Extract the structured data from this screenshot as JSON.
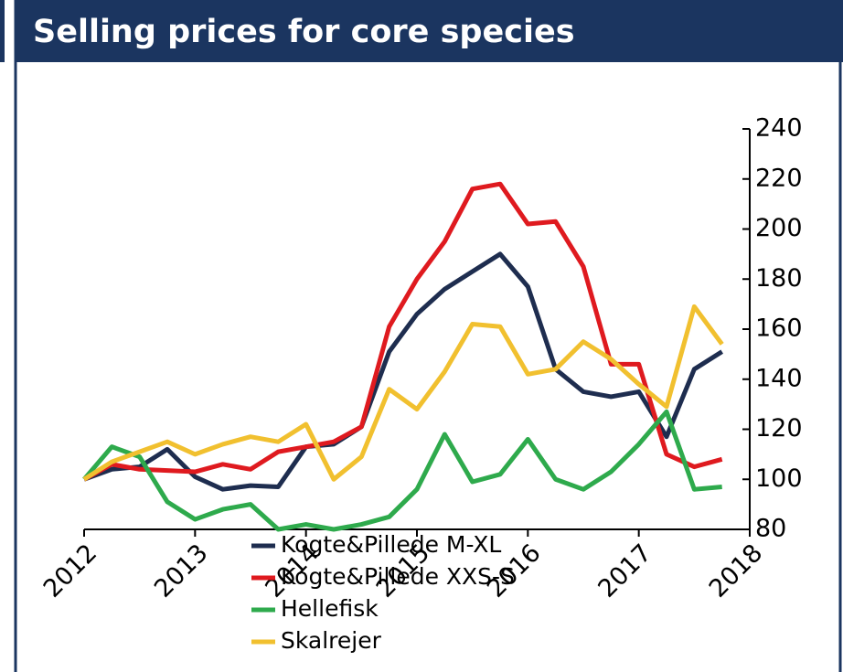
{
  "chart_data": {
    "type": "line",
    "title": "Selling prices for core species",
    "x": [
      2012,
      2012.25,
      2012.5,
      2012.75,
      2013,
      2013.25,
      2013.5,
      2013.75,
      2014,
      2014.25,
      2014.5,
      2014.75,
      2015,
      2015.25,
      2015.5,
      2015.75,
      2016,
      2016.25,
      2016.5,
      2016.75,
      2017,
      2017.25,
      2017.5,
      2017.75
    ],
    "series": [
      {
        "name": "Kogte&Pillede M-XL",
        "color": "#1e2d4f",
        "values": [
          100,
          104,
          105,
          112,
          101,
          96,
          97.5,
          97,
          113,
          114,
          121,
          151,
          166,
          176,
          183,
          190,
          177,
          144,
          135,
          133,
          135,
          117,
          144,
          151
        ]
      },
      {
        "name": "Kogte&Pillede XXS-S",
        "color": "#df1a1f",
        "values": [
          100,
          106,
          104,
          103.5,
          103,
          106,
          104,
          111,
          113,
          115,
          121,
          161,
          180,
          195,
          216,
          218,
          202,
          203,
          185,
          146,
          146,
          110,
          105,
          108
        ]
      },
      {
        "name": "Hellefisk",
        "color": "#2eaa4c",
        "values": [
          100,
          113,
          109,
          91,
          84,
          88,
          90,
          80,
          82,
          80,
          82,
          85,
          96,
          118,
          99,
          102,
          116,
          100,
          96,
          103,
          114,
          127,
          96,
          97
        ]
      },
      {
        "name": "Skalrejer",
        "color": "#f1c02f",
        "values": [
          100,
          107,
          111,
          115,
          110,
          114,
          117,
          115,
          122,
          100,
          109,
          136,
          128,
          143,
          162,
          161,
          142,
          144,
          155,
          148,
          138,
          129,
          169,
          154
        ]
      }
    ],
    "xlim": [
      2012,
      2018
    ],
    "xticks": [
      2012,
      2013,
      2014,
      2015,
      2016,
      2017,
      2018
    ],
    "ylim": [
      80,
      240
    ],
    "yticks": [
      80,
      100,
      120,
      140,
      160,
      180,
      200,
      220,
      240
    ]
  }
}
